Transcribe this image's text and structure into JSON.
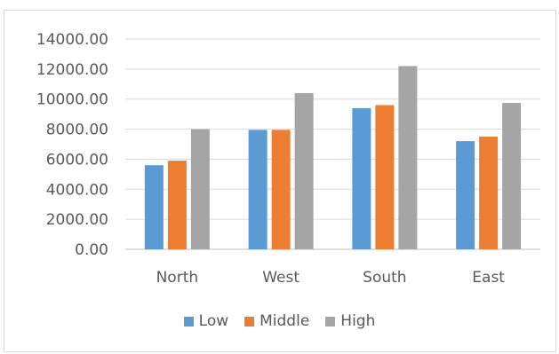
{
  "chart_data": {
    "type": "bar",
    "title": "",
    "xlabel": "",
    "ylabel": "",
    "categories": [
      "North",
      "West",
      "South",
      "East"
    ],
    "series": [
      {
        "name": "Low",
        "color": "#5b9bd5",
        "values": [
          5600,
          7950,
          9400,
          7200
        ]
      },
      {
        "name": "Middle",
        "color": "#ed7d31",
        "values": [
          5900,
          7950,
          9600,
          7500
        ]
      },
      {
        "name": "High",
        "color": "#a5a5a5",
        "values": [
          8000,
          10400,
          12200,
          9750
        ]
      }
    ],
    "ylim": [
      0,
      14000
    ],
    "yticks": [
      0,
      2000,
      4000,
      6000,
      8000,
      10000,
      12000,
      14000
    ],
    "ytick_labels": [
      "0.00",
      "2000.00",
      "4000.00",
      "6000.00",
      "8000.00",
      "10000.00",
      "12000.00",
      "14000.00"
    ],
    "grid": true,
    "legend_position": "bottom"
  }
}
